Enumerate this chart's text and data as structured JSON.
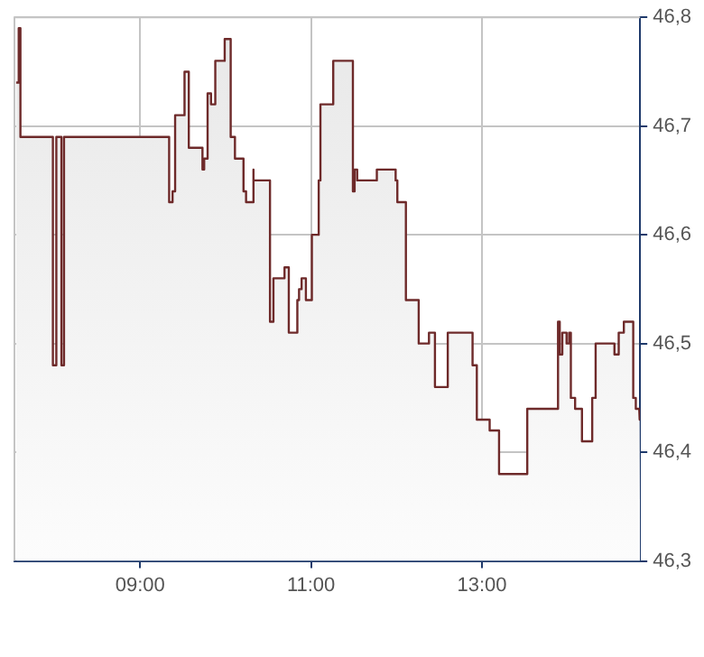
{
  "chart_data": {
    "type": "area",
    "x": [
      7.55,
      7.58,
      7.58,
      7.6,
      7.6,
      7.98,
      7.98,
      8.02,
      8.02,
      8.08,
      8.08,
      8.11,
      8.11,
      9.34,
      9.34,
      9.38,
      9.38,
      9.41,
      9.41,
      9.52,
      9.52,
      9.57,
      9.57,
      9.73,
      9.73,
      9.75,
      9.75,
      9.79,
      9.79,
      9.83,
      9.83,
      9.88,
      9.88,
      9.99,
      9.99,
      10.06,
      10.06,
      10.11,
      10.11,
      10.21,
      10.21,
      10.24,
      10.24,
      10.32,
      10.32,
      10.33,
      10.33,
      10.52,
      10.52,
      10.56,
      10.56,
      10.69,
      10.69,
      10.74,
      10.74,
      10.84,
      10.84,
      10.86,
      10.86,
      10.89,
      10.89,
      10.94,
      10.94,
      11.01,
      11.01,
      11.09,
      11.09,
      11.11,
      11.11,
      11.26,
      11.26,
      11.49,
      11.49,
      11.51,
      11.51,
      11.54,
      11.54,
      11.77,
      11.77,
      11.99,
      11.99,
      12.01,
      12.01,
      12.11,
      12.11,
      12.26,
      12.26,
      12.38,
      12.38,
      12.45,
      12.45,
      12.6,
      12.6,
      12.89,
      12.89,
      12.94,
      12.94,
      13.09,
      13.09,
      13.2,
      13.2,
      13.53,
      13.53,
      13.89,
      13.89,
      13.91,
      13.91,
      13.94,
      13.94,
      13.99,
      13.99,
      14.02,
      14.02,
      14.04,
      14.04,
      14.09,
      14.09,
      14.17,
      14.17,
      14.29,
      14.29,
      14.33,
      14.33,
      14.55,
      14.55,
      14.6,
      14.6,
      14.66,
      14.66,
      14.77,
      14.77,
      14.8,
      14.8,
      14.84,
      14.84,
      14.85
    ],
    "series": [
      {
        "color": "#6e2a2a",
        "values": [
          46.74,
          46.74,
          46.79,
          46.79,
          46.69,
          46.69,
          46.48,
          46.48,
          46.69,
          46.69,
          46.48,
          46.48,
          46.69,
          46.69,
          46.63,
          46.63,
          46.64,
          46.64,
          46.71,
          46.71,
          46.75,
          46.75,
          46.68,
          46.68,
          46.66,
          46.66,
          46.67,
          46.67,
          46.73,
          46.73,
          46.72,
          46.72,
          46.76,
          46.76,
          46.78,
          46.78,
          46.69,
          46.69,
          46.67,
          46.67,
          46.64,
          46.64,
          46.63,
          46.63,
          46.66,
          46.66,
          46.65,
          46.65,
          46.52,
          46.52,
          46.56,
          46.56,
          46.57,
          46.57,
          46.51,
          46.51,
          46.54,
          46.54,
          46.55,
          46.55,
          46.56,
          46.56,
          46.54,
          46.54,
          46.6,
          46.6,
          46.65,
          46.65,
          46.72,
          46.72,
          46.76,
          46.76,
          46.64,
          46.64,
          46.66,
          46.66,
          46.65,
          46.65,
          46.66,
          46.66,
          46.65,
          46.65,
          46.63,
          46.63,
          46.54,
          46.54,
          46.5,
          46.5,
          46.51,
          46.51,
          46.46,
          46.46,
          46.51,
          46.51,
          46.48,
          46.48,
          46.43,
          46.43,
          46.42,
          46.42,
          46.38,
          46.38,
          46.44,
          46.44,
          46.52,
          46.52,
          46.49,
          46.49,
          46.51,
          46.51,
          46.5,
          46.5,
          46.51,
          46.51,
          46.45,
          46.45,
          46.44,
          46.44,
          46.41,
          46.41,
          46.45,
          46.45,
          46.5,
          46.5,
          46.49,
          46.49,
          46.51,
          46.51,
          46.52,
          46.52,
          46.45,
          46.45,
          46.44,
          46.44,
          46.43,
          46.43
        ]
      }
    ],
    "xlim": [
      7.53,
      14.85
    ],
    "xticks": [
      {
        "value": 9,
        "label": "09:00"
      },
      {
        "value": 11,
        "label": "11:00"
      },
      {
        "value": 13,
        "label": "13:00"
      }
    ],
    "ylim": [
      46.3,
      46.8
    ],
    "yticks": [
      {
        "value": 46.3,
        "label": "46,3"
      },
      {
        "value": 46.4,
        "label": "46,4"
      },
      {
        "value": 46.5,
        "label": "46,5"
      },
      {
        "value": 46.6,
        "label": "46,6"
      },
      {
        "value": 46.7,
        "label": "46,7"
      },
      {
        "value": 46.8,
        "label": "46,8"
      }
    ],
    "grid": true
  }
}
